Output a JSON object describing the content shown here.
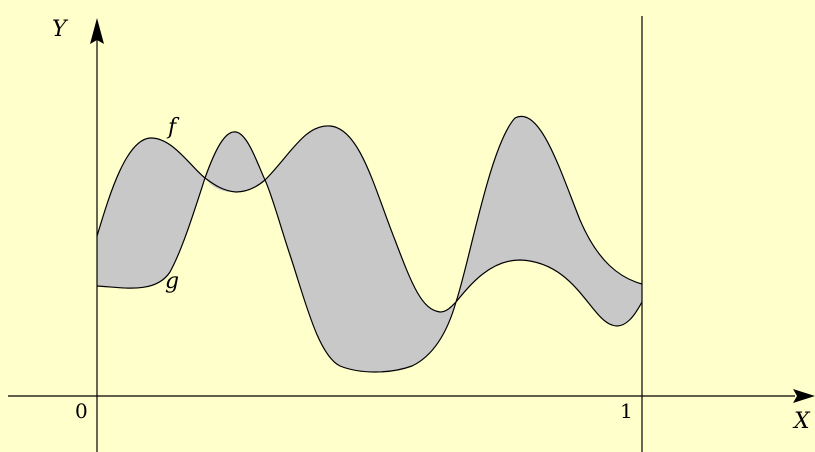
{
  "colors": {
    "background": "#ffffcc",
    "fill": "#c8c8c8",
    "stroke": "#000000"
  },
  "axes": {
    "x_label": "X",
    "y_label": "Y",
    "origin_tick": "0",
    "one_tick": "1"
  },
  "curves": {
    "f_label": "f",
    "g_label": "g"
  }
}
